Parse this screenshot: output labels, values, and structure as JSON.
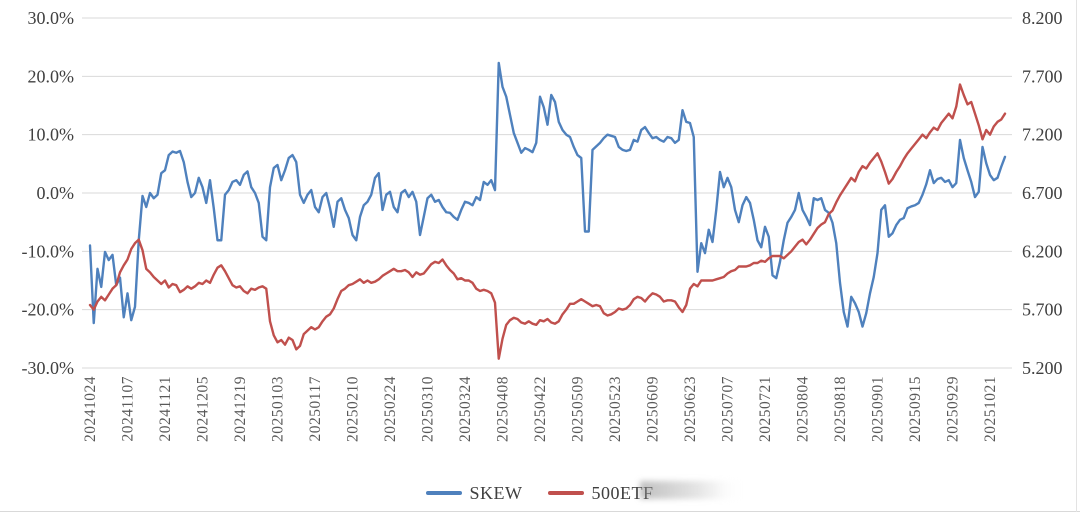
{
  "legend": {
    "skew_label": "SKEW",
    "etf_label": "500ETF"
  },
  "colors": {
    "skew_line": "#4F81BD",
    "etf_line": "#C0504D",
    "gridline": "#d9d9d9",
    "axis_text": "#404040",
    "x_axis_text": "#595959"
  },
  "chart_data": {
    "type": "line",
    "title": "",
    "xlabel": "",
    "ylabel_left": "",
    "ylabel_right": "",
    "grid": "horizontal-only",
    "legend_position": "bottom-center",
    "x_tick_labels": [
      "20241024",
      "20241107",
      "20241121",
      "20241205",
      "20241219",
      "20250103",
      "20250117",
      "20250210",
      "20250224",
      "20250310",
      "20250324",
      "20250408",
      "20250422",
      "20250509",
      "20250523",
      "20250609",
      "20250623",
      "20250707",
      "20250721",
      "20250804",
      "20250818",
      "20250901",
      "20250915",
      "20250929",
      "20251021"
    ],
    "points_per_tick_interval": 10,
    "left_axis": {
      "ticks": [
        "30.0%",
        "20.0%",
        "10.0%",
        "0.0%",
        "-10.0%",
        "-20.0%",
        "-30.0%"
      ],
      "min": -30,
      "max": 30
    },
    "right_axis": {
      "ticks": [
        "8.200",
        "7.700",
        "7.200",
        "6.700",
        "6.200",
        "5.700",
        "5.200"
      ],
      "min": 5.2,
      "max": 8.2
    },
    "series": [
      {
        "name": "SKEW",
        "axis": "left",
        "color": "#4F81BD",
        "values": [
          -9.0,
          -22.3,
          -13.0,
          -16.1,
          -10.1,
          -11.5,
          -10.6,
          -15.8,
          -14.5,
          -21.3,
          -17.2,
          -21.8,
          -19.5,
          -8.1,
          -0.5,
          -2.4,
          0.0,
          -0.9,
          -0.3,
          3.4,
          3.9,
          6.5,
          7.1,
          6.9,
          7.2,
          5.3,
          1.9,
          -0.7,
          0.0,
          2.6,
          1.0,
          -1.7,
          2.2,
          -2.6,
          -8.1,
          -8.1,
          -0.3,
          0.5,
          1.9,
          2.2,
          1.4,
          3.1,
          3.7,
          1.0,
          0.0,
          -1.7,
          -7.5,
          -8.1,
          1.0,
          4.3,
          4.8,
          2.2,
          3.9,
          6.0,
          6.5,
          5.3,
          -0.3,
          -1.7,
          -0.3,
          0.5,
          -2.4,
          -3.3,
          -0.7,
          0.0,
          -2.6,
          -5.8,
          -1.5,
          -0.9,
          -2.9,
          -4.3,
          -7.2,
          -8.1,
          -4.1,
          -2.1,
          -1.5,
          -0.3,
          2.6,
          3.4,
          -2.9,
          -0.3,
          0.2,
          -2.4,
          -3.3,
          0.0,
          0.5,
          -0.7,
          0.2,
          -1.5,
          -7.2,
          -4.1,
          -0.9,
          -0.3,
          -1.5,
          -1.2,
          -2.4,
          -3.3,
          -3.4,
          -4.1,
          -4.6,
          -2.9,
          -1.5,
          -1.7,
          -2.1,
          -0.7,
          -1.2,
          1.9,
          1.4,
          2.2,
          0.5,
          22.3,
          18.2,
          16.5,
          13.4,
          10.3,
          8.6,
          6.9,
          7.7,
          7.4,
          7.0,
          8.6,
          16.5,
          14.7,
          11.7,
          16.8,
          15.6,
          12.2,
          10.8,
          10.0,
          9.6,
          7.9,
          6.5,
          6.0,
          -6.6,
          -6.6,
          7.4,
          8.0,
          8.6,
          9.4,
          10.0,
          9.8,
          9.6,
          7.9,
          7.4,
          7.2,
          7.4,
          9.1,
          8.8,
          10.8,
          11.3,
          10.3,
          9.4,
          9.6,
          9.1,
          8.8,
          9.6,
          9.4,
          8.6,
          9.1,
          14.2,
          12.2,
          12.0,
          9.6,
          -13.5,
          -8.6,
          -10.3,
          -6.3,
          -8.4,
          -2.9,
          3.6,
          1.0,
          2.6,
          1.0,
          -2.9,
          -5.0,
          -2.1,
          -0.7,
          -1.7,
          -4.6,
          -8.1,
          -9.3,
          -5.8,
          -7.5,
          -14.1,
          -14.6,
          -11.8,
          -8.1,
          -5.1,
          -4.1,
          -2.9,
          0.0,
          -2.9,
          -4.1,
          -5.5,
          -0.9,
          -1.2,
          -0.9,
          -2.9,
          -3.4,
          -5.1,
          -8.6,
          -15.4,
          -20.4,
          -22.9,
          -17.8,
          -18.9,
          -20.4,
          -22.9,
          -20.6,
          -17.2,
          -14.4,
          -10.3,
          -2.9,
          -2.1,
          -7.5,
          -6.9,
          -5.5,
          -4.6,
          -4.3,
          -2.6,
          -2.3,
          -2.1,
          -1.7,
          -0.3,
          1.5,
          3.9,
          1.7,
          2.4,
          2.6,
          1.9,
          2.2,
          1.0,
          1.7,
          9.1,
          6.0,
          3.9,
          1.9,
          -0.7,
          0.2,
          7.9,
          5.1,
          3.1,
          2.2,
          2.6,
          4.5,
          6.2
        ]
      },
      {
        "name": "500ETF",
        "axis": "right",
        "color": "#C0504D",
        "values": [
          5.74,
          5.7,
          5.77,
          5.81,
          5.78,
          5.83,
          5.88,
          5.91,
          6.02,
          6.08,
          6.13,
          6.22,
          6.27,
          6.3,
          6.21,
          6.05,
          6.02,
          5.98,
          5.95,
          5.92,
          5.95,
          5.89,
          5.92,
          5.91,
          5.85,
          5.87,
          5.9,
          5.88,
          5.9,
          5.93,
          5.92,
          5.95,
          5.93,
          6.0,
          6.06,
          6.08,
          6.03,
          5.97,
          5.91,
          5.89,
          5.9,
          5.86,
          5.84,
          5.88,
          5.87,
          5.89,
          5.9,
          5.88,
          5.6,
          5.48,
          5.42,
          5.44,
          5.4,
          5.46,
          5.44,
          5.36,
          5.39,
          5.49,
          5.52,
          5.55,
          5.53,
          5.55,
          5.6,
          5.64,
          5.66,
          5.71,
          5.79,
          5.86,
          5.88,
          5.91,
          5.92,
          5.94,
          5.96,
          5.93,
          5.95,
          5.93,
          5.94,
          5.96,
          5.99,
          6.01,
          6.03,
          6.05,
          6.03,
          6.03,
          6.04,
          6.02,
          5.98,
          6.02,
          6.0,
          6.01,
          6.05,
          6.09,
          6.11,
          6.1,
          6.13,
          6.08,
          6.04,
          6.01,
          5.96,
          5.97,
          5.95,
          5.95,
          5.93,
          5.88,
          5.86,
          5.87,
          5.86,
          5.84,
          5.76,
          5.28,
          5.45,
          5.57,
          5.61,
          5.63,
          5.62,
          5.59,
          5.58,
          5.6,
          5.58,
          5.57,
          5.61,
          5.6,
          5.62,
          5.59,
          5.58,
          5.6,
          5.66,
          5.7,
          5.75,
          5.75,
          5.77,
          5.79,
          5.77,
          5.75,
          5.73,
          5.74,
          5.73,
          5.67,
          5.65,
          5.66,
          5.68,
          5.71,
          5.7,
          5.71,
          5.74,
          5.79,
          5.81,
          5.8,
          5.77,
          5.81,
          5.84,
          5.83,
          5.81,
          5.77,
          5.78,
          5.78,
          5.77,
          5.72,
          5.68,
          5.74,
          5.88,
          5.92,
          5.9,
          5.95,
          5.95,
          5.95,
          5.95,
          5.96,
          5.97,
          5.98,
          6.01,
          6.03,
          6.04,
          6.07,
          6.07,
          6.07,
          6.08,
          6.1,
          6.1,
          6.12,
          6.11,
          6.14,
          6.16,
          6.16,
          6.16,
          6.14,
          6.17,
          6.2,
          6.24,
          6.28,
          6.3,
          6.26,
          6.3,
          6.35,
          6.4,
          6.43,
          6.45,
          6.52,
          6.55,
          6.62,
          6.68,
          6.73,
          6.78,
          6.83,
          6.8,
          6.88,
          6.93,
          6.91,
          6.96,
          7.0,
          7.04,
          6.97,
          6.88,
          6.78,
          6.82,
          6.88,
          6.93,
          6.99,
          7.04,
          7.08,
          7.12,
          7.16,
          7.2,
          7.17,
          7.22,
          7.26,
          7.24,
          7.3,
          7.34,
          7.38,
          7.34,
          7.44,
          7.63,
          7.54,
          7.46,
          7.48,
          7.38,
          7.28,
          7.16,
          7.24,
          7.2,
          7.27,
          7.31,
          7.33,
          7.38
        ]
      }
    ]
  }
}
